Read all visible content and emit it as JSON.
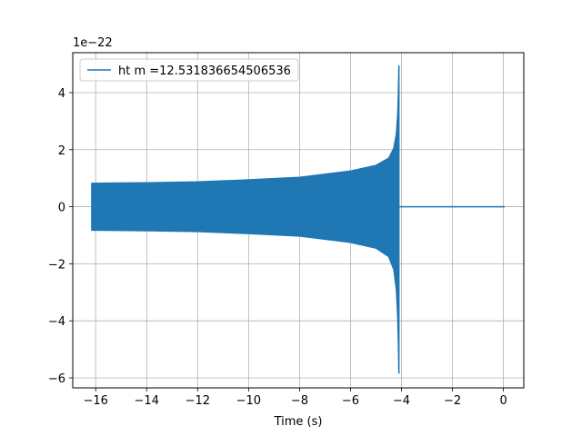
{
  "chart_data": {
    "type": "line",
    "title": "",
    "xlabel": "Time (s)",
    "ylabel": "",
    "y_offset_text": "1e−22",
    "y_multiplier": 1e-22,
    "xlim": [
      -16.9,
      0.8
    ],
    "ylim": [
      -6.35,
      5.4
    ],
    "grid": true,
    "legend_position": "upper-left",
    "x_ticks": [
      -16,
      -14,
      -12,
      -10,
      -8,
      -6,
      -4,
      -2,
      0
    ],
    "x_tick_labels": [
      "−16",
      "−14",
      "−12",
      "−10",
      "−8",
      "−6",
      "−4",
      "−2",
      "0"
    ],
    "y_ticks": [
      4,
      2,
      0,
      -2,
      -4,
      -6
    ],
    "y_tick_labels": [
      "4",
      "2",
      "0",
      "−2",
      "−4",
      "−6"
    ],
    "series": [
      {
        "name": "ht m =12.531836654506536",
        "color": "#1f77b4",
        "x_start": -16.15,
        "merger_time": -4.09,
        "x_end": 0.05,
        "envelope_upper": [
          [
            -16.15,
            0.82
          ],
          [
            -14,
            0.84
          ],
          [
            -12,
            0.87
          ],
          [
            -10,
            0.94
          ],
          [
            -8,
            1.03
          ],
          [
            -6,
            1.25
          ],
          [
            -5,
            1.45
          ],
          [
            -4.5,
            1.7
          ],
          [
            -4.3,
            2.05
          ],
          [
            -4.2,
            2.55
          ],
          [
            -4.15,
            3.2
          ],
          [
            -4.12,
            4.0
          ],
          [
            -4.1,
            4.95
          ]
        ],
        "envelope_lower": [
          [
            -16.15,
            -0.82
          ],
          [
            -14,
            -0.84
          ],
          [
            -12,
            -0.87
          ],
          [
            -10,
            -0.94
          ],
          [
            -8,
            -1.03
          ],
          [
            -6,
            -1.25
          ],
          [
            -5,
            -1.45
          ],
          [
            -4.5,
            -1.75
          ],
          [
            -4.3,
            -2.2
          ],
          [
            -4.2,
            -2.9
          ],
          [
            -4.15,
            -3.8
          ],
          [
            -4.12,
            -4.8
          ],
          [
            -4.1,
            -5.85
          ]
        ],
        "post_merger_value": 0
      }
    ]
  }
}
